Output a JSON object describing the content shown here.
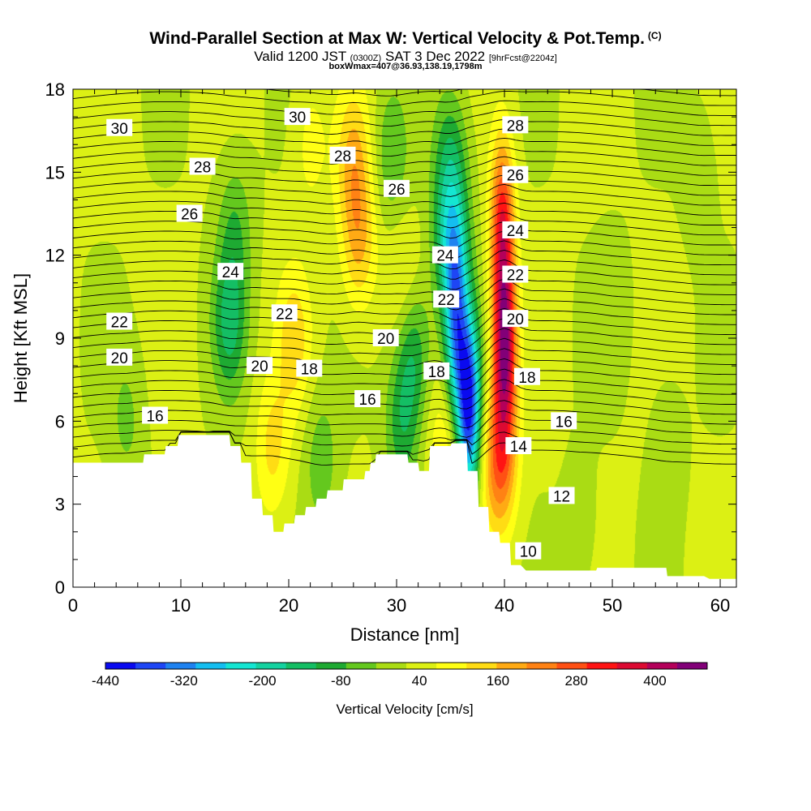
{
  "title": {
    "main": "Wind-Parallel Section at Max W: Vertical Velocity & Pot.Temp.",
    "units_tag": "(C)",
    "valid_pre": "Valid 1200 JST",
    "valid_utc": "(0300Z)",
    "valid_post": "SAT 3 Dec 2022",
    "forecast": "[9hrFcst@2204z]",
    "box": "boxWmax=407@36.93,138.19,1798m"
  },
  "chart_data": {
    "type": "heatmap",
    "xlabel": "Distance [nm]",
    "ylabel": "Height [Kft MSL]",
    "xlim": [
      0,
      61.5
    ],
    "ylim": [
      0,
      18
    ],
    "x_ticks": [
      0,
      10,
      20,
      30,
      40,
      50,
      60
    ],
    "y_ticks": [
      0,
      3,
      6,
      9,
      12,
      15,
      18
    ],
    "colorbar": {
      "label": "Vertical Velocity [cm/s]",
      "tick_labels": [
        -440,
        -320,
        -200,
        -80,
        40,
        160,
        280,
        400
      ],
      "min": -440,
      "max": 480,
      "colors": [
        "#0a0af0",
        "#1e46f5",
        "#1e82f0",
        "#14bef0",
        "#14e6d2",
        "#14d2a0",
        "#14be64",
        "#1eaa32",
        "#64c81e",
        "#aadc14",
        "#dcf014",
        "#ffff14",
        "#ffdc14",
        "#ffaa14",
        "#ff8214",
        "#ff5014",
        "#ff1414",
        "#dc0a32",
        "#b4005a",
        "#820078"
      ]
    },
    "terrain_kft": [
      [
        0,
        4.5
      ],
      [
        3,
        4.5
      ],
      [
        6.5,
        4.5
      ],
      [
        6.6,
        4.8
      ],
      [
        8.5,
        4.8
      ],
      [
        8.6,
        5.1
      ],
      [
        9.7,
        5.1
      ],
      [
        9.8,
        5.5
      ],
      [
        14.5,
        5.5
      ],
      [
        14.6,
        5.1
      ],
      [
        15.5,
        5.1
      ],
      [
        15.6,
        4.5
      ],
      [
        16.5,
        4.5
      ],
      [
        16.6,
        3.2
      ],
      [
        17.5,
        3.2
      ],
      [
        17.6,
        2.6
      ],
      [
        18.5,
        2.6
      ],
      [
        18.6,
        2.0
      ],
      [
        19.5,
        2.0
      ],
      [
        19.6,
        2.3
      ],
      [
        20.5,
        2.3
      ],
      [
        20.6,
        2.6
      ],
      [
        21.5,
        2.6
      ],
      [
        21.6,
        2.9
      ],
      [
        22.5,
        2.9
      ],
      [
        22.6,
        3.2
      ],
      [
        23.5,
        3.2
      ],
      [
        23.6,
        3.5
      ],
      [
        25.0,
        3.5
      ],
      [
        25.1,
        3.9
      ],
      [
        27.0,
        3.9
      ],
      [
        27.1,
        4.2
      ],
      [
        27.5,
        4.2
      ],
      [
        27.6,
        4.5
      ],
      [
        28.0,
        4.5
      ],
      [
        28.1,
        4.8
      ],
      [
        31.0,
        4.8
      ],
      [
        31.1,
        4.5
      ],
      [
        32.0,
        4.5
      ],
      [
        32.1,
        4.2
      ],
      [
        33.0,
        4.2
      ],
      [
        33.1,
        5.1
      ],
      [
        34.5,
        5.1
      ],
      [
        35.0,
        5.1
      ],
      [
        35.1,
        5.2
      ],
      [
        36.5,
        5.2
      ],
      [
        36.6,
        4.2
      ],
      [
        37.5,
        4.2
      ],
      [
        37.6,
        2.9
      ],
      [
        38.5,
        2.9
      ],
      [
        38.6,
        2.0
      ],
      [
        39.5,
        2.0
      ],
      [
        39.6,
        1.6
      ],
      [
        40.5,
        1.6
      ],
      [
        40.6,
        0.8
      ],
      [
        41.5,
        0.8
      ],
      [
        42.0,
        0.6
      ],
      [
        43.0,
        0.6
      ],
      [
        48.5,
        0.6
      ],
      [
        48.6,
        0.7
      ],
      [
        55.0,
        0.7
      ],
      [
        55.1,
        0.4
      ],
      [
        58.5,
        0.4
      ],
      [
        59.0,
        0.3
      ],
      [
        61.5,
        0.3
      ]
    ],
    "updraft_cores": [
      {
        "x": 40.0,
        "y": 8.5,
        "w": 400
      },
      {
        "x": 39.8,
        "y": 13.0,
        "w": 300
      },
      {
        "x": 39.5,
        "y": 4.5,
        "w": 220
      },
      {
        "x": 26.5,
        "y": 12.5,
        "w": 140
      },
      {
        "x": 26.0,
        "y": 15.5,
        "w": 130
      },
      {
        "x": 20.5,
        "y": 9.0,
        "w": 110
      },
      {
        "x": 18.5,
        "y": 5.0,
        "w": 100
      },
      {
        "x": 30.5,
        "y": 11.0,
        "w": 60
      },
      {
        "x": 34.5,
        "y": 5.0,
        "w": 90
      },
      {
        "x": 22.0,
        "y": 16.0,
        "w": 60
      }
    ],
    "downdraft_cores": [
      {
        "x": 36.7,
        "y": 6.5,
        "w": -440
      },
      {
        "x": 35.5,
        "y": 9.5,
        "w": -300
      },
      {
        "x": 35.0,
        "y": 12.5,
        "w": -200
      },
      {
        "x": 35.0,
        "y": 15.5,
        "w": -130
      },
      {
        "x": 14.5,
        "y": 9.5,
        "w": -150
      },
      {
        "x": 15.0,
        "y": 13.0,
        "w": -90
      },
      {
        "x": 31.5,
        "y": 8.5,
        "w": -140
      },
      {
        "x": 30.5,
        "y": 5.8,
        "w": -120
      },
      {
        "x": 29.5,
        "y": 15.5,
        "w": -90
      },
      {
        "x": 23.0,
        "y": 4.5,
        "w": -80
      },
      {
        "x": 5.0,
        "y": 6.0,
        "w": -60
      },
      {
        "x": 50.0,
        "y": 10.0,
        "w": -40
      },
      {
        "x": 55.0,
        "y": 5.0,
        "w": -40
      },
      {
        "x": 58.0,
        "y": 15.0,
        "w": -40
      },
      {
        "x": 47.0,
        "y": 2.0,
        "w": -35
      }
    ],
    "theta_contour_labels": [
      {
        "text": "30",
        "x": 4.3,
        "y": 16.6
      },
      {
        "text": "30",
        "x": 20.8,
        "y": 17.0
      },
      {
        "text": "28",
        "x": 12.0,
        "y": 15.2
      },
      {
        "text": "28",
        "x": 25.0,
        "y": 15.6
      },
      {
        "text": "28",
        "x": 41.0,
        "y": 16.7
      },
      {
        "text": "26",
        "x": 10.8,
        "y": 13.5
      },
      {
        "text": "26",
        "x": 30.0,
        "y": 14.4
      },
      {
        "text": "26",
        "x": 41.0,
        "y": 14.9
      },
      {
        "text": "24",
        "x": 14.6,
        "y": 11.4
      },
      {
        "text": "24",
        "x": 34.5,
        "y": 12.0
      },
      {
        "text": "24",
        "x": 41.0,
        "y": 12.9
      },
      {
        "text": "22",
        "x": 4.3,
        "y": 9.6
      },
      {
        "text": "22",
        "x": 19.6,
        "y": 9.9
      },
      {
        "text": "22",
        "x": 34.6,
        "y": 10.4
      },
      {
        "text": "22",
        "x": 41.0,
        "y": 11.3
      },
      {
        "text": "20",
        "x": 4.3,
        "y": 8.3
      },
      {
        "text": "20",
        "x": 17.3,
        "y": 8.0
      },
      {
        "text": "20",
        "x": 29.0,
        "y": 9.0
      },
      {
        "text": "20",
        "x": 41.0,
        "y": 9.7
      },
      {
        "text": "18",
        "x": 21.9,
        "y": 7.9
      },
      {
        "text": "18",
        "x": 33.7,
        "y": 7.8
      },
      {
        "text": "18",
        "x": 42.1,
        "y": 7.6
      },
      {
        "text": "16",
        "x": 7.6,
        "y": 6.2
      },
      {
        "text": "16",
        "x": 27.3,
        "y": 6.8
      },
      {
        "text": "16",
        "x": 45.5,
        "y": 6.0
      },
      {
        "text": "14",
        "x": 41.3,
        "y": 5.1
      },
      {
        "text": "12",
        "x": 45.3,
        "y": 3.3
      },
      {
        "text": "10",
        "x": 42.2,
        "y": 1.3
      }
    ]
  }
}
